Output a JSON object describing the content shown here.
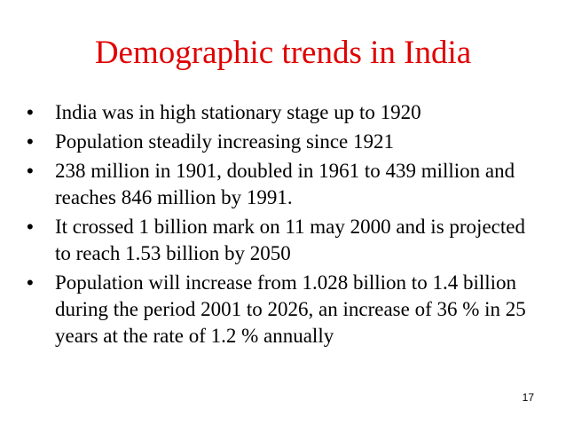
{
  "slide": {
    "title": "Demographic trends in India",
    "bullets": [
      {
        "marker": "•",
        "text": "India was in high stationary stage up to 1920"
      },
      {
        "marker": "•",
        "text": "Population steadily increasing since 1921"
      },
      {
        "marker": "•",
        "text": "238 million in 1901, doubled in 1961 to 439 million and reaches 846 million by 1991."
      },
      {
        "marker": "•",
        "text": "It crossed 1 billion mark on 11 may 2000 and is projected to reach 1.53 billion by 2050"
      },
      {
        "marker": "•",
        "text": "Population will increase from 1.028 billion to 1.4 billion during the period 2001 to 2026, an increase of 36 % in 25 years at the rate of 1.2 % annually"
      }
    ],
    "page_number": "17",
    "colors": {
      "title": "#e00000",
      "text": "#000000",
      "background": "#ffffff"
    }
  }
}
